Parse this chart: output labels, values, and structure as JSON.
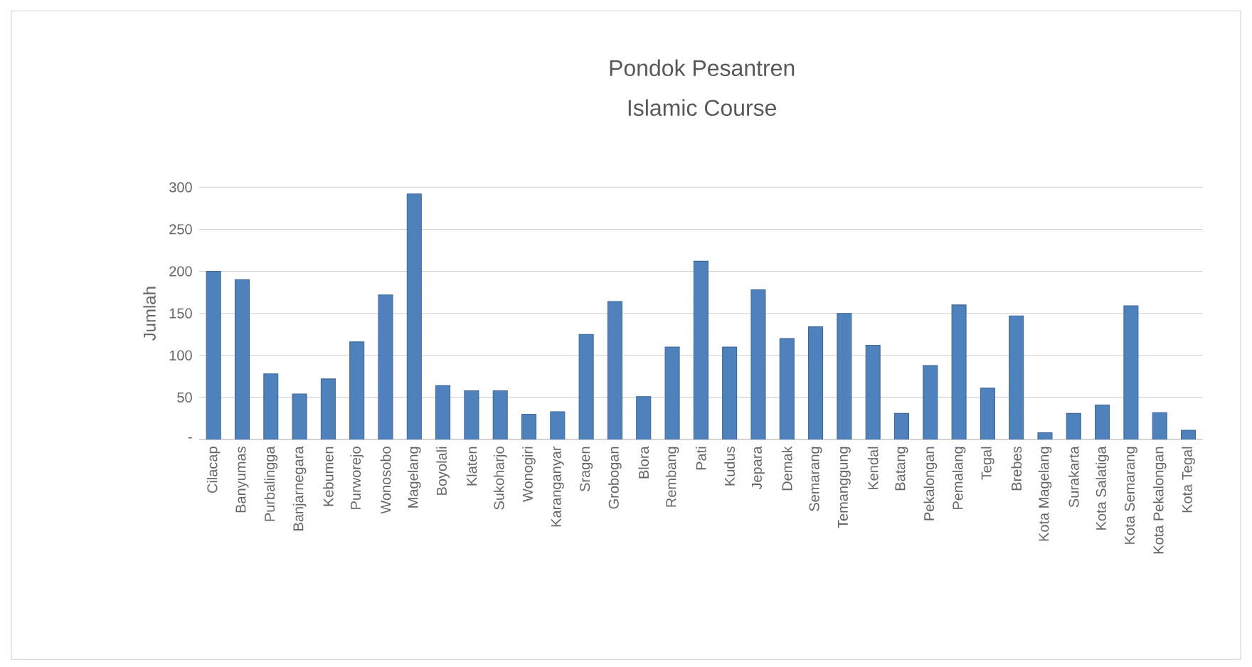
{
  "chart_data": {
    "type": "bar",
    "title": "Pondok Pesantren",
    "subtitle": "Islamic Course",
    "ylabel": "Jumlah",
    "categories": [
      "Cilacap",
      "Banyumas",
      "Purbalingga",
      "Banjarnegara",
      "Kebumen",
      "Purworejo",
      "Wonosobo",
      "Magelang",
      "Boyolali",
      "Klaten",
      "Sukoharjo",
      "Wonogiri",
      "Karanganyar",
      "Sragen",
      "Grobogan",
      "Blora",
      "Rembang",
      "Pati",
      "Kudus",
      "Jepara",
      "Demak",
      "Semarang",
      "Temanggung",
      "Kendal",
      "Batang",
      "Pekalongan",
      "Pemalang",
      "Tegal",
      "Brebes",
      "Kota Magelang",
      "Surakarta",
      "Kota Salatiga",
      "Kota Semarang",
      "Kota Pekalongan",
      "Kota Tegal"
    ],
    "values": [
      200,
      190,
      78,
      54,
      72,
      116,
      172,
      292,
      64,
      58,
      58,
      30,
      33,
      125,
      164,
      51,
      110,
      212,
      110,
      178,
      120,
      134,
      150,
      112,
      31,
      88,
      160,
      61,
      147,
      8,
      31,
      41,
      159,
      32,
      11
    ],
    "color": "#4f81bd",
    "ylim": [
      0,
      300
    ],
    "yticks": [
      {
        "value": 0,
        "label": "-"
      },
      50,
      100,
      150,
      200,
      250,
      300
    ],
    "grid": "y"
  }
}
